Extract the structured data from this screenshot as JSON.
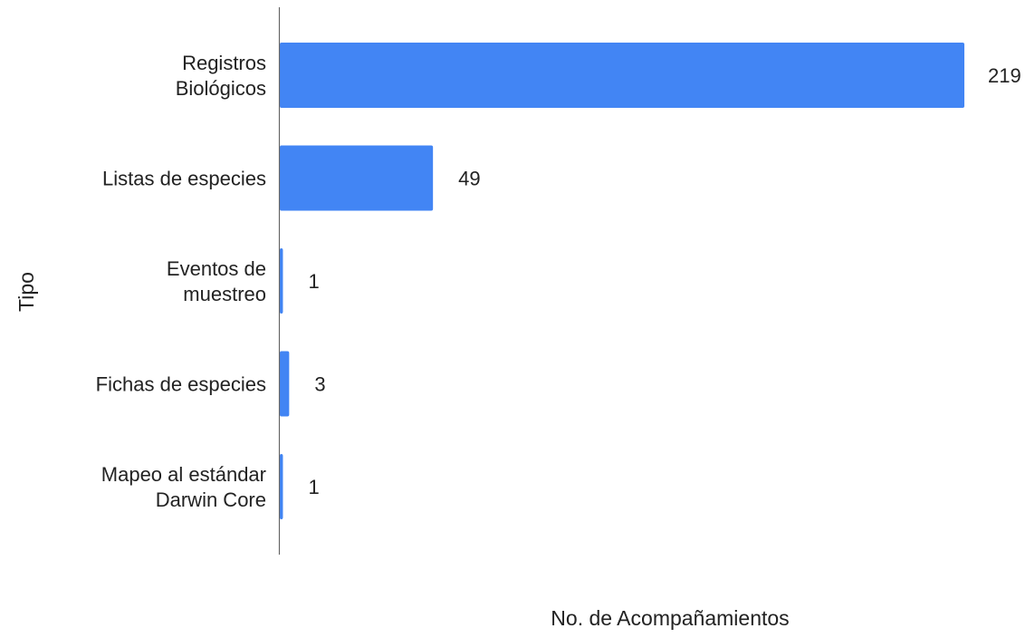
{
  "chart_data": {
    "type": "bar",
    "orientation": "horizontal",
    "title": "",
    "xlabel": "No. de Acompañamientos",
    "ylabel": "Tipo",
    "categories": [
      [
        "Registros",
        "Biológicos"
      ],
      [
        "Listas de especies"
      ],
      [
        "Eventos de",
        "muestreo"
      ],
      [
        "Fichas de especies"
      ],
      [
        "Mapeo al estándar",
        "Darwin Core"
      ]
    ],
    "values": [
      219,
      49,
      1,
      3,
      1
    ],
    "data_labels": [
      "219",
      "49",
      "1",
      "3",
      "1"
    ],
    "xlim": [
      0,
      219
    ],
    "grid": false,
    "legend": "none",
    "bar_color": "#4285f4",
    "axis_color": "#666666"
  }
}
